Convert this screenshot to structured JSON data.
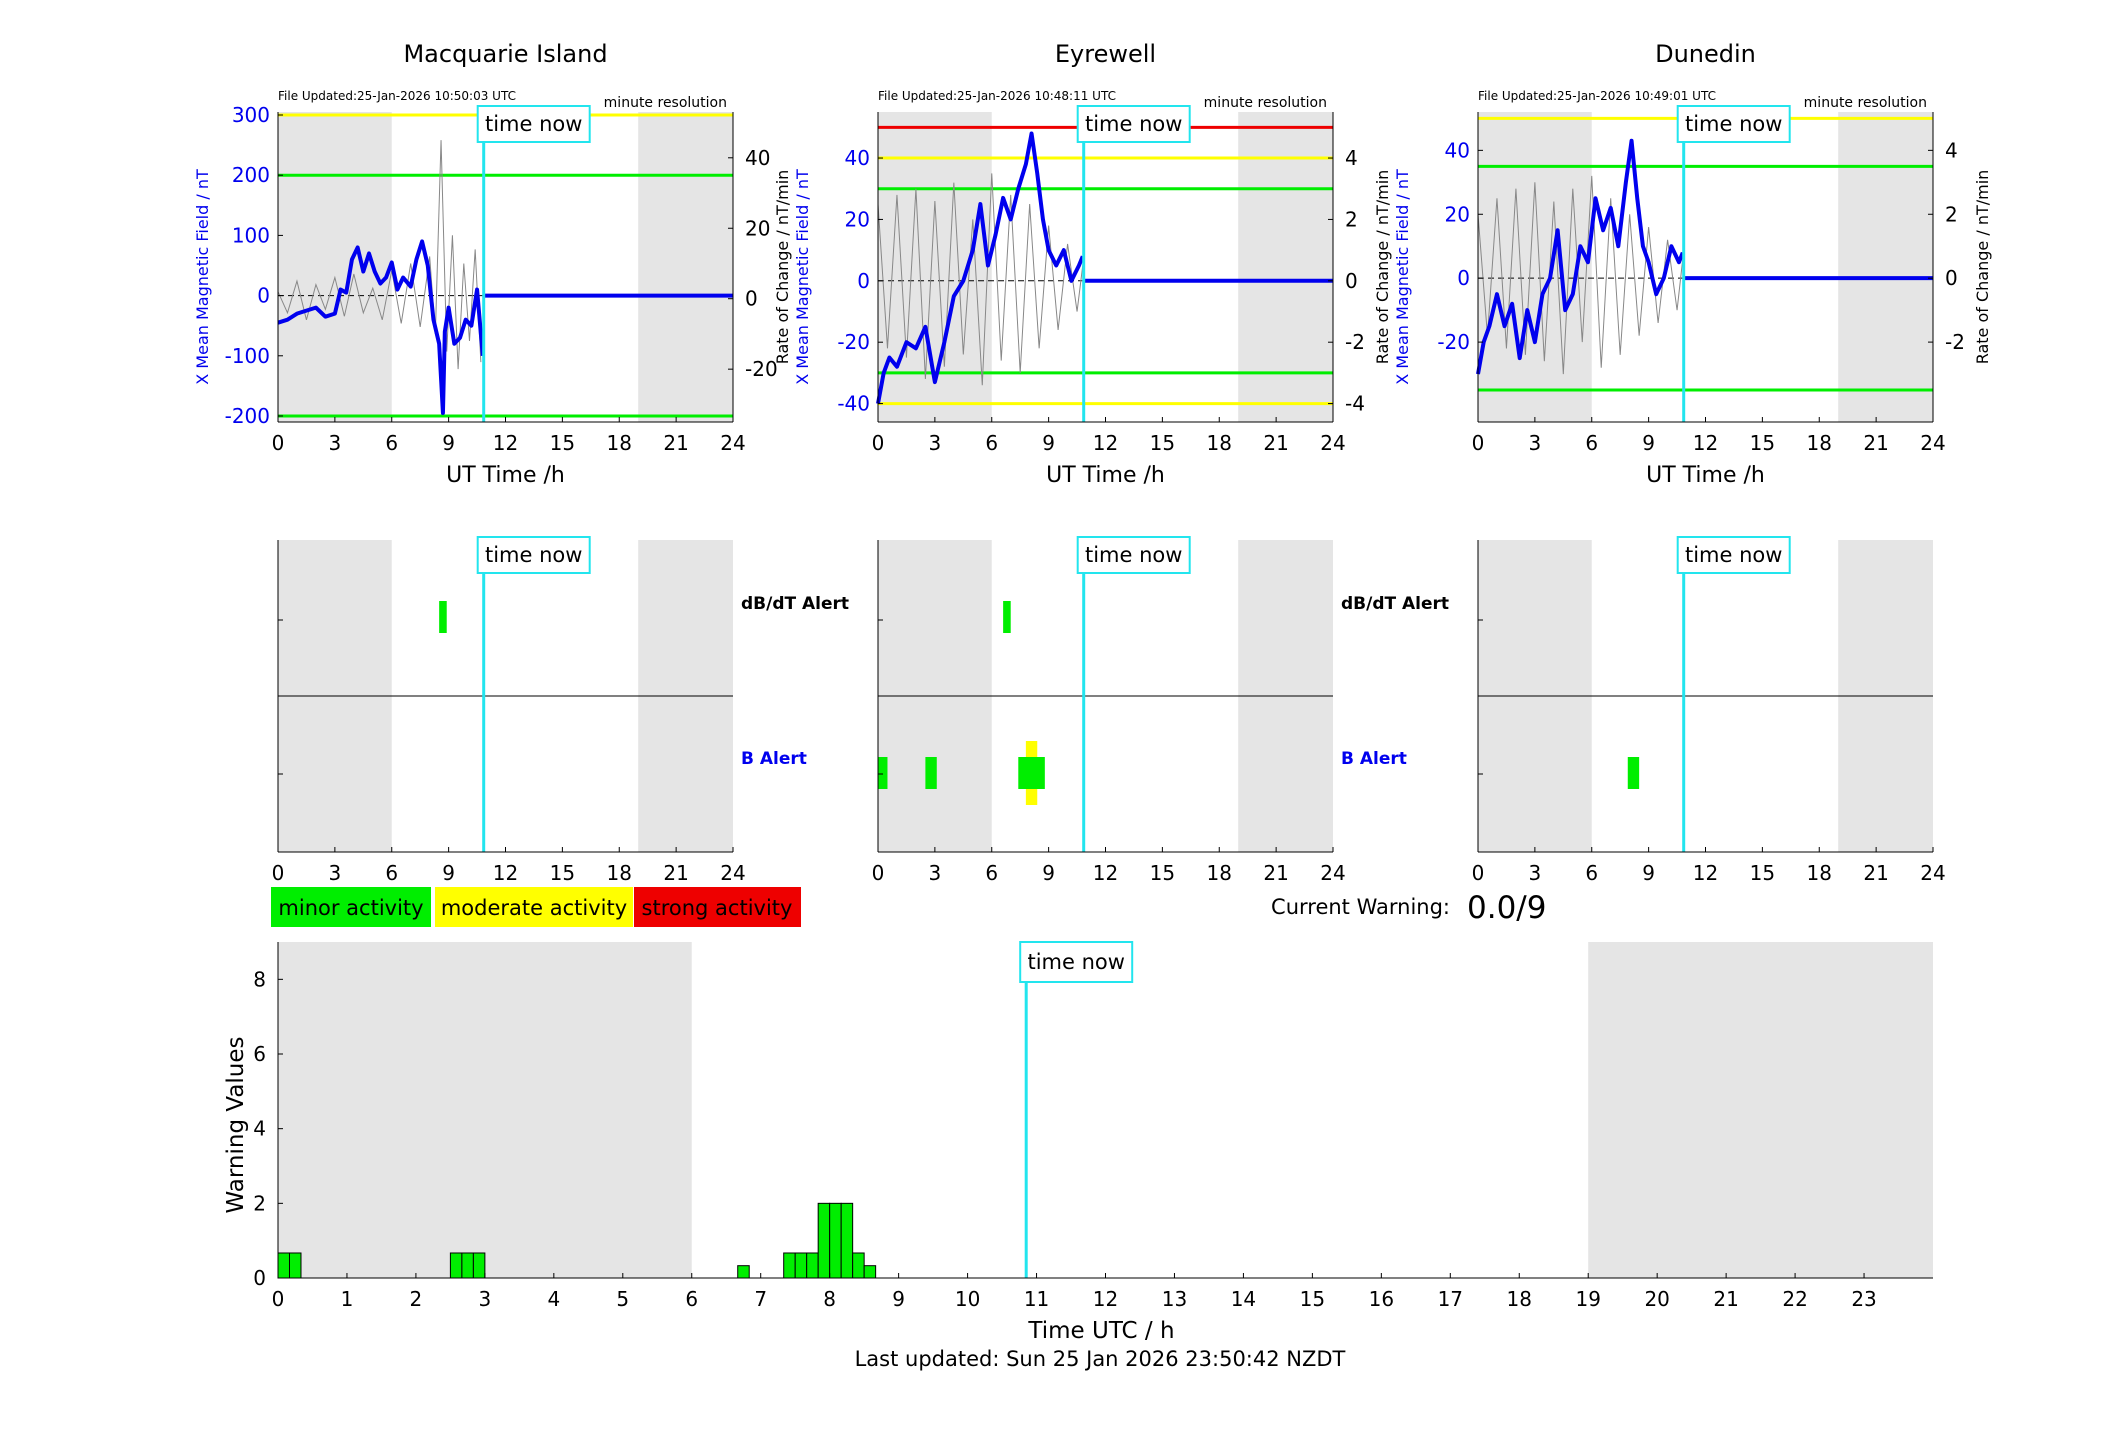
{
  "colors": {
    "blue": "#0000ee",
    "grey_trace": "#888888",
    "cyan": "#22e5ee",
    "green": "#00ee00",
    "yellow": "#ffff00",
    "red": "#ee0000",
    "shade": "#e5e5e5"
  },
  "common": {
    "time_now_label": "time now",
    "time_now_h": 10.85,
    "ut_axis_label": "UT Time /h",
    "resolution_label": "minute resolution",
    "rate_axis_label": "Rate of Change / nT/min",
    "x_axis_ticks": [
      0,
      3,
      6,
      9,
      12,
      15,
      18,
      21,
      24
    ],
    "shade_ranges": [
      [
        0,
        6
      ],
      [
        19,
        24
      ]
    ]
  },
  "chart_data": [
    {
      "type": "line",
      "station": "Macquarie Island",
      "file_updated": "File Updated:25-Jan-2026 10:50:03 UTC",
      "ylabel": "X Mean Magnetic Field / nT",
      "ylim": [
        -210,
        305
      ],
      "yticks": [
        -200,
        -100,
        0,
        100,
        200,
        300
      ],
      "y2lim": [
        -35,
        53
      ],
      "y2ticks": [
        -20,
        0,
        20,
        40
      ],
      "thresholds": [
        {
          "value": 300,
          "color": "yellow"
        },
        {
          "value": 200,
          "color": "green"
        },
        {
          "value": -200,
          "color": "green"
        }
      ],
      "field_series": {
        "x": [
          0,
          0.5,
          1,
          1.5,
          2,
          2.5,
          3,
          3.3,
          3.6,
          3.9,
          4.2,
          4.5,
          4.8,
          5.1,
          5.4,
          5.7,
          6,
          6.3,
          6.6,
          7,
          7.3,
          7.6,
          7.9,
          8.2,
          8.5,
          8.7,
          8.8,
          9,
          9.3,
          9.6,
          9.9,
          10.2,
          10.5,
          10.8
        ],
        "y": [
          -45,
          -40,
          -30,
          -25,
          -20,
          -35,
          -30,
          10,
          5,
          60,
          80,
          40,
          70,
          40,
          20,
          30,
          55,
          10,
          30,
          15,
          60,
          90,
          50,
          -40,
          -80,
          -195,
          -60,
          -20,
          -80,
          -70,
          -40,
          -50,
          10,
          -100
        ]
      },
      "rate_series": {
        "x": [
          0,
          0.5,
          1,
          1.5,
          2,
          2.5,
          3,
          3.5,
          4,
          4.5,
          5,
          5.5,
          6,
          6.5,
          7,
          7.5,
          8,
          8.3,
          8.6,
          8.9,
          9.2,
          9.5,
          9.8,
          10.1,
          10.4,
          10.7
        ],
        "y": [
          2,
          -4,
          5,
          -6,
          4,
          -3,
          6,
          -5,
          7,
          -4,
          3,
          -6,
          8,
          -7,
          10,
          -8,
          12,
          -10,
          45,
          -15,
          18,
          -20,
          10,
          -12,
          14,
          -18
        ]
      },
      "rate_extent_h": 10.8
    },
    {
      "type": "line",
      "station": "Eyrewell",
      "file_updated": "File Updated:25-Jan-2026 10:48:11 UTC",
      "ylabel": "X Mean Magnetic Field / nT",
      "ylim": [
        -46,
        55
      ],
      "yticks": [
        -40,
        -20,
        0,
        20,
        40
      ],
      "y2lim": [
        -4.6,
        5.5
      ],
      "y2ticks": [
        -4,
        -2,
        0,
        2,
        4
      ],
      "thresholds": [
        {
          "value": 50,
          "color": "red"
        },
        {
          "value": 40,
          "color": "yellow"
        },
        {
          "value": 30,
          "color": "green"
        },
        {
          "value": -30,
          "color": "green"
        },
        {
          "value": -40,
          "color": "yellow"
        }
      ],
      "field_series": {
        "x": [
          0,
          0.3,
          0.6,
          1,
          1.5,
          2,
          2.5,
          3,
          3.5,
          4,
          4.5,
          5,
          5.4,
          5.8,
          6.2,
          6.6,
          7,
          7.4,
          7.8,
          8.1,
          8.4,
          8.7,
          9,
          9.4,
          9.8,
          10.2,
          10.6,
          10.8
        ],
        "y": [
          -40,
          -30,
          -25,
          -28,
          -20,
          -22,
          -15,
          -33,
          -20,
          -5,
          0,
          10,
          25,
          5,
          15,
          27,
          20,
          30,
          38,
          48,
          35,
          20,
          10,
          5,
          10,
          0,
          5,
          8
        ]
      },
      "rate_series": {
        "x": [
          0,
          0.5,
          1,
          1.5,
          2,
          2.5,
          3,
          3.5,
          4,
          4.5,
          5,
          5.5,
          6,
          6.5,
          7,
          7.5,
          8,
          8.5,
          9,
          9.5,
          10,
          10.5,
          10.8
        ],
        "y": [
          2.5,
          -2.2,
          2.8,
          -2.5,
          3.0,
          -3.2,
          2.6,
          -2.8,
          3.2,
          -2.4,
          2.0,
          -3.4,
          3.5,
          -2.6,
          2.8,
          -3.0,
          2.5,
          -2.2,
          1.8,
          -1.6,
          1.2,
          -1.0,
          0.5
        ]
      },
      "rate_extent_h": 10.8
    },
    {
      "type": "line",
      "station": "Dunedin",
      "file_updated": "File Updated:25-Jan-2026 10:49:01 UTC",
      "ylabel": "X Mean Magnetic Field / nT",
      "ylim": [
        -45,
        52
      ],
      "yticks": [
        -20,
        0,
        20,
        40
      ],
      "y2lim": [
        -4.5,
        5.2
      ],
      "y2ticks": [
        -2,
        0,
        2,
        4
      ],
      "thresholds": [
        {
          "value": 50,
          "color": "yellow"
        },
        {
          "value": 35,
          "color": "green"
        },
        {
          "value": -35,
          "color": "green"
        }
      ],
      "field_series": {
        "x": [
          0,
          0.3,
          0.6,
          1,
          1.4,
          1.8,
          2.2,
          2.6,
          3,
          3.4,
          3.8,
          4.2,
          4.6,
          5,
          5.4,
          5.8,
          6.2,
          6.6,
          7,
          7.4,
          7.8,
          8.1,
          8.4,
          8.7,
          9,
          9.4,
          9.8,
          10.2,
          10.6,
          10.8
        ],
        "y": [
          -30,
          -20,
          -15,
          -5,
          -15,
          -8,
          -25,
          -10,
          -20,
          -5,
          0,
          15,
          -10,
          -5,
          10,
          5,
          25,
          15,
          22,
          10,
          30,
          43,
          25,
          10,
          5,
          -5,
          0,
          10,
          5,
          8
        ]
      },
      "rate_series": {
        "x": [
          0,
          0.5,
          1,
          1.5,
          2,
          2.5,
          3,
          3.5,
          4,
          4.5,
          5,
          5.5,
          6,
          6.5,
          7,
          7.5,
          8,
          8.5,
          9,
          9.5,
          10,
          10.5,
          10.8
        ],
        "y": [
          2.0,
          -1.8,
          2.5,
          -2.2,
          2.8,
          -2.4,
          3.0,
          -2.6,
          2.4,
          -3.0,
          2.8,
          -2.0,
          3.2,
          -2.8,
          2.5,
          -2.4,
          2.0,
          -1.8,
          1.6,
          -1.4,
          1.2,
          -1.0,
          0.6
        ]
      },
      "rate_extent_h": 10.8
    },
    {
      "type": "bar",
      "panel": "alerts",
      "station": "Macquarie Island",
      "dbdt_label": "dB/dT Alert",
      "b_label": "B Alert",
      "dbdt_alerts": [
        {
          "start_h": 8.5,
          "end_h": 8.9,
          "level": "minor"
        }
      ],
      "b_alerts": []
    },
    {
      "type": "bar",
      "panel": "alerts",
      "station": "Eyrewell",
      "dbdt_label": "dB/dT Alert",
      "b_label": "B Alert",
      "dbdt_alerts": [
        {
          "start_h": 6.6,
          "end_h": 7.0,
          "level": "minor"
        }
      ],
      "b_alerts": [
        {
          "start_h": 0.0,
          "end_h": 0.5,
          "level": "minor"
        },
        {
          "start_h": 2.5,
          "end_h": 3.1,
          "level": "minor"
        },
        {
          "start_h": 7.8,
          "end_h": 8.4,
          "level": "moderate"
        },
        {
          "start_h": 7.4,
          "end_h": 8.8,
          "level": "minor"
        }
      ]
    },
    {
      "type": "bar",
      "panel": "alerts",
      "station": "Dunedin",
      "dbdt_label": "dB/dT Alert",
      "b_label": "B Alert",
      "dbdt_alerts": [],
      "b_alerts": [
        {
          "start_h": 7.9,
          "end_h": 8.5,
          "level": "minor"
        }
      ]
    },
    {
      "type": "bar",
      "panel": "warning",
      "ylabel": "Warning Values",
      "xlabel": "Time UTC / h",
      "ylim": [
        0,
        9
      ],
      "yticks": [
        0,
        2,
        4,
        6,
        8
      ],
      "xlim": [
        0,
        24
      ],
      "xticks": [
        0,
        1,
        2,
        3,
        4,
        5,
        6,
        7,
        8,
        9,
        10,
        11,
        12,
        13,
        14,
        15,
        16,
        17,
        18,
        19,
        20,
        21,
        22,
        23
      ],
      "bar_width_h": 0.1667,
      "bars": [
        {
          "x": 0.0,
          "value": 0.67
        },
        {
          "x": 0.1667,
          "value": 0.67
        },
        {
          "x": 2.5,
          "value": 0.67
        },
        {
          "x": 2.6667,
          "value": 0.67
        },
        {
          "x": 2.8333,
          "value": 0.67
        },
        {
          "x": 6.6667,
          "value": 0.33
        },
        {
          "x": 7.3333,
          "value": 0.67
        },
        {
          "x": 7.5,
          "value": 0.67
        },
        {
          "x": 7.6667,
          "value": 0.67
        },
        {
          "x": 7.8333,
          "value": 2.0
        },
        {
          "x": 8.0,
          "value": 2.0
        },
        {
          "x": 8.1667,
          "value": 2.0
        },
        {
          "x": 8.3333,
          "value": 0.67
        },
        {
          "x": 8.5,
          "value": 0.33
        }
      ]
    }
  ],
  "legend": {
    "minor": "minor activity",
    "moderate": "moderate activity",
    "strong": "strong activity"
  },
  "current_warning": {
    "label": "Current Warning:",
    "value": "0.0/9"
  },
  "footer": {
    "last_updated": "Last updated: Sun 25 Jan 2026 23:50:42 NZDT"
  }
}
